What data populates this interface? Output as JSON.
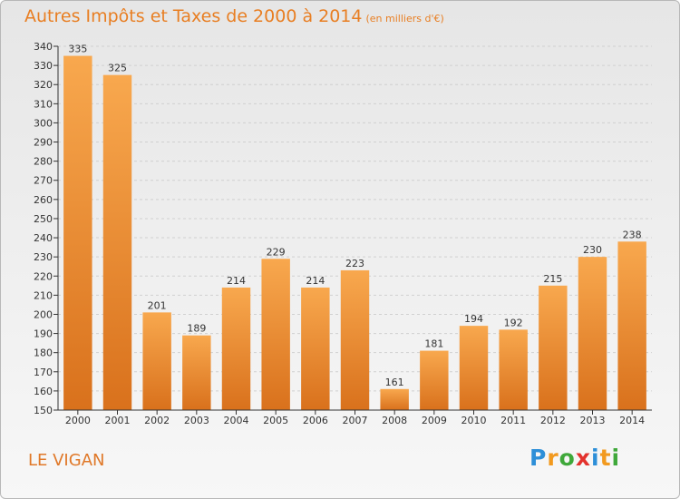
{
  "title": "Autres Impôts et Taxes de 2000 à 2014",
  "subtitle": "(en milliers d'€)",
  "place": "LE VIGAN",
  "logo": {
    "letters": [
      "P",
      "r",
      "o",
      "x",
      "i",
      "t",
      "i"
    ],
    "colors": [
      "#2d8fd8",
      "#f29a1f",
      "#3fa83a",
      "#e3322d",
      "#2d8fd8",
      "#f29a1f",
      "#3fa83a"
    ]
  },
  "colors": {
    "title": "#e87e22",
    "bar_top": "#f8a84e",
    "bar_bottom": "#d9711c",
    "grid": "#d0d0d0",
    "axis": "#333333"
  },
  "chart_data": {
    "type": "bar",
    "categories": [
      "2000",
      "2001",
      "2002",
      "2003",
      "2004",
      "2005",
      "2006",
      "2007",
      "2008",
      "2009",
      "2010",
      "2011",
      "2012",
      "2013",
      "2014"
    ],
    "values": [
      335,
      325,
      201,
      189,
      214,
      229,
      214,
      223,
      161,
      181,
      194,
      192,
      215,
      230,
      238
    ],
    "ylim": [
      150,
      340
    ],
    "yticks": [
      150,
      160,
      170,
      180,
      190,
      200,
      210,
      220,
      230,
      240,
      250,
      260,
      270,
      280,
      290,
      300,
      310,
      320,
      330,
      340
    ],
    "grid": true,
    "data_labels": true
  }
}
